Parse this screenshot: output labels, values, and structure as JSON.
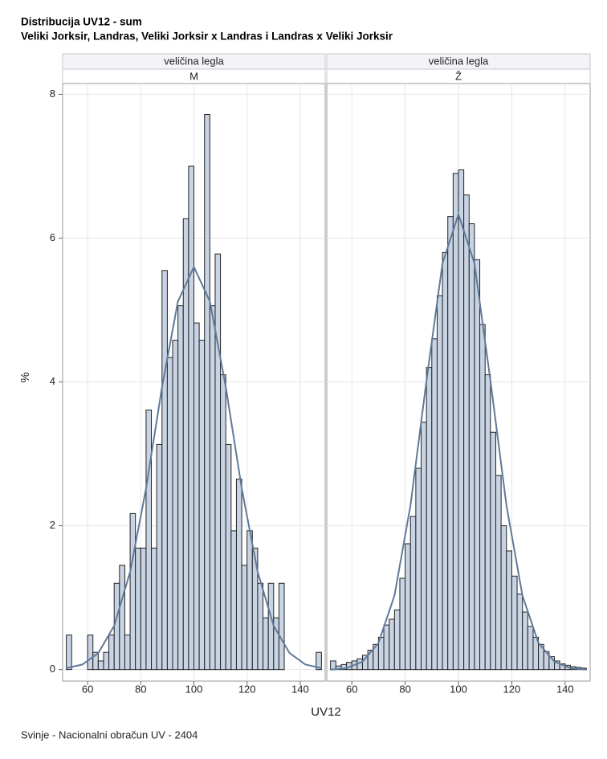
{
  "header": {
    "title": "Distribucija UV12 - sum",
    "subtitle": "Veliki Jorksir, Landras, Veliki Jorksir x Landras i Landras x Veliki Jorksir"
  },
  "axes": {
    "x_label": "UV12",
    "y_label": "%"
  },
  "footnote": "Svinje - Nacionalni obračun UV - 2404",
  "chart_data": [
    {
      "type": "histogram",
      "panel_labels": [
        "veličina legla",
        "M"
      ],
      "color": "#c8d4e3",
      "curve_color": "#5f7a99",
      "grid": true,
      "xlim": [
        50.6,
        149.4
      ],
      "ylim": [
        -0.16,
        8.15
      ],
      "xticks": [
        60,
        80,
        100,
        120,
        140
      ],
      "yticks": [
        0,
        2,
        4,
        6,
        8
      ],
      "bins": [
        52,
        54,
        56,
        58,
        60,
        62,
        64,
        66,
        68,
        70,
        72,
        74,
        76,
        78,
        80,
        82,
        84,
        86,
        88,
        90,
        92,
        94,
        96,
        98,
        100,
        102,
        104,
        106,
        108,
        110,
        112,
        114,
        116,
        118,
        120,
        122,
        124,
        126,
        128,
        130,
        132,
        134,
        136,
        138,
        140,
        142,
        144,
        146,
        148
      ],
      "values": [
        0.48,
        0,
        0,
        0,
        0.48,
        0.24,
        0.12,
        0.24,
        0.48,
        1.2,
        1.45,
        0.48,
        2.17,
        1.69,
        1.69,
        3.61,
        1.69,
        3.13,
        5.55,
        4.34,
        4.58,
        5.06,
        6.27,
        7.0,
        4.82,
        4.58,
        7.72,
        5.06,
        5.78,
        4.1,
        3.13,
        1.93,
        2.65,
        1.45,
        1.93,
        1.69,
        1.2,
        0.72,
        1.2,
        0.72,
        1.2,
        0,
        0,
        0,
        0,
        0,
        0,
        0.24
      ],
      "curve": {
        "x": [
          52,
          58,
          64,
          70,
          76,
          82,
          88,
          94,
          100,
          106,
          112,
          118,
          124,
          130,
          136,
          142,
          148
        ],
        "y": [
          0.02,
          0.07,
          0.23,
          0.61,
          1.36,
          2.52,
          3.93,
          5.12,
          5.6,
          5.12,
          3.93,
          2.52,
          1.36,
          0.61,
          0.23,
          0.07,
          0.02
        ]
      }
    },
    {
      "type": "histogram",
      "panel_labels": [
        "veličina legla",
        "Ž"
      ],
      "color": "#c8d4e3",
      "curve_color": "#5f7a99",
      "grid": true,
      "xlim": [
        50.6,
        149.4
      ],
      "ylim": [
        -0.16,
        8.15
      ],
      "xticks": [
        60,
        80,
        100,
        120,
        140
      ],
      "yticks": [
        0,
        2,
        4,
        6,
        8
      ],
      "bins": [
        52,
        54,
        56,
        58,
        60,
        62,
        64,
        66,
        68,
        70,
        72,
        74,
        76,
        78,
        80,
        82,
        84,
        86,
        88,
        90,
        92,
        94,
        96,
        98,
        100,
        102,
        104,
        106,
        108,
        110,
        112,
        114,
        116,
        118,
        120,
        122,
        124,
        126,
        128,
        130,
        132,
        134,
        136,
        138,
        140,
        142,
        144,
        146,
        148
      ],
      "values": [
        0.12,
        0.05,
        0.07,
        0.1,
        0.12,
        0.15,
        0.2,
        0.27,
        0.35,
        0.45,
        0.62,
        0.7,
        0.83,
        1.27,
        1.75,
        2.13,
        2.8,
        3.44,
        4.2,
        4.6,
        5.2,
        5.8,
        6.3,
        6.9,
        6.95,
        6.6,
        6.2,
        5.7,
        4.8,
        4.1,
        3.3,
        2.7,
        2.0,
        1.65,
        1.3,
        1.05,
        0.8,
        0.6,
        0.45,
        0.35,
        0.25,
        0.18,
        0.12,
        0.08,
        0.06,
        0.04,
        0.03,
        0.02
      ],
      "curve": {
        "x": [
          52,
          58,
          64,
          70,
          76,
          82,
          88,
          94,
          100,
          106,
          112,
          118,
          124,
          130,
          136,
          142,
          148
        ],
        "y": [
          0.0,
          0.02,
          0.11,
          0.37,
          1.03,
          2.28,
          4.02,
          5.65,
          6.33,
          5.65,
          4.02,
          2.28,
          1.03,
          0.37,
          0.11,
          0.02,
          0.0
        ]
      }
    }
  ]
}
